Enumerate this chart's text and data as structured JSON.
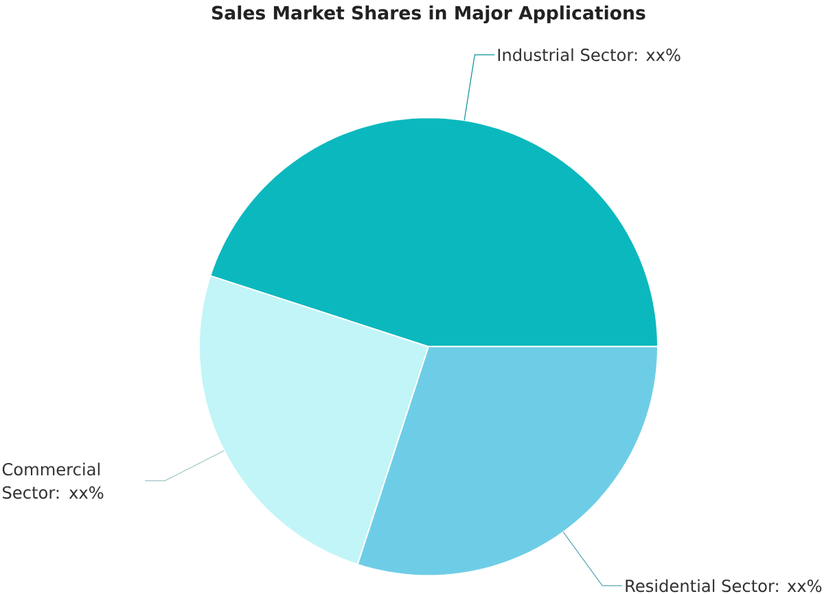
{
  "chart_data": {
    "type": "pie",
    "title": "Sales Market Shares in Major Applications",
    "categories": [
      "Industrial Sector: xx%",
      "Commercial Sector: xx%",
      "Residential Sector: xx%"
    ],
    "values": [
      45,
      25,
      30
    ],
    "colors": [
      "#0bb8be",
      "#c2f5f8",
      "#6ecde6"
    ]
  }
}
